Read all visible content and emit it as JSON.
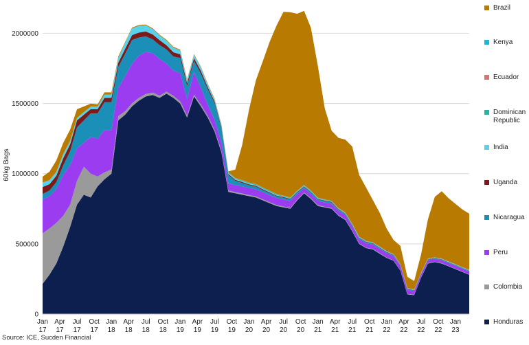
{
  "chart_data": {
    "type": "area",
    "stacked": true,
    "ylabel": "60kg Bags",
    "ylim": [
      0,
      2100000
    ],
    "yticks": [
      0,
      500000,
      1000000,
      1500000,
      2000000
    ],
    "ytick_labels": [
      "0",
      "500000",
      "1000000",
      "1500000",
      "2000000"
    ],
    "grid": "horizontal",
    "legend_position": "right",
    "x": [
      2017.0,
      2017.1,
      2017.2,
      2017.3,
      2017.4,
      2017.5,
      2017.6,
      2017.7,
      2017.8,
      2017.9,
      2018.0,
      2018.1,
      2018.2,
      2018.3,
      2018.4,
      2018.5,
      2018.6,
      2018.7,
      2018.8,
      2018.9,
      2019.0,
      2019.1,
      2019.2,
      2019.3,
      2019.4,
      2019.5,
      2019.6,
      2019.7,
      2019.8,
      2019.9,
      2020.0,
      2020.1,
      2020.2,
      2020.3,
      2020.4,
      2020.5,
      2020.6,
      2020.7,
      2020.8,
      2020.9,
      2021.0,
      2021.1,
      2021.2,
      2021.3,
      2021.4,
      2021.5,
      2021.6,
      2021.7,
      2021.8,
      2021.9,
      2022.0,
      2022.1,
      2022.2,
      2022.3,
      2022.4,
      2022.5,
      2022.6,
      2022.7,
      2022.8,
      2022.9,
      2023.0,
      2023.1,
      2023.2
    ],
    "xticks": [
      2017.0,
      2017.25,
      2017.5,
      2017.75,
      2018.0,
      2018.25,
      2018.5,
      2018.75,
      2019.0,
      2019.25,
      2019.5,
      2019.75,
      2020.0,
      2020.25,
      2020.5,
      2020.75,
      2021.0,
      2021.25,
      2021.5,
      2021.75,
      2022.0,
      2022.25,
      2022.5,
      2022.75,
      2023.0
    ],
    "xtick_labels": [
      [
        "Jan",
        "17"
      ],
      [
        "Apr",
        "17"
      ],
      [
        "Jul",
        "17"
      ],
      [
        "Oct",
        "17"
      ],
      [
        "Jan",
        "18"
      ],
      [
        "Apr",
        "18"
      ],
      [
        "Jul",
        "18"
      ],
      [
        "Oct",
        "18"
      ],
      [
        "Jan",
        "19"
      ],
      [
        "Apr",
        "19"
      ],
      [
        "Jul",
        "19"
      ],
      [
        "Oct",
        "19"
      ],
      [
        "Jan",
        "20"
      ],
      [
        "Apr",
        "20"
      ],
      [
        "Jul",
        "20"
      ],
      [
        "Oct",
        "20"
      ],
      [
        "Jan",
        "21"
      ],
      [
        "Apr",
        "21"
      ],
      [
        "Jul",
        "21"
      ],
      [
        "Oct",
        "21"
      ],
      [
        "Jan",
        "22"
      ],
      [
        "Apr",
        "22"
      ],
      [
        "Jul",
        "22"
      ],
      [
        "Oct",
        "22"
      ],
      [
        "Jan",
        "23"
      ]
    ],
    "series": [
      {
        "name": "Honduras",
        "color": "#0d1f4f",
        "values": [
          215000,
          280000,
          360000,
          480000,
          620000,
          780000,
          850000,
          830000,
          910000,
          960000,
          1000000,
          1380000,
          1420000,
          1480000,
          1520000,
          1550000,
          1560000,
          1540000,
          1570000,
          1540000,
          1500000,
          1400000,
          1550000,
          1480000,
          1400000,
          1300000,
          1150000,
          870000,
          860000,
          850000,
          840000,
          830000,
          810000,
          790000,
          770000,
          760000,
          750000,
          810000,
          860000,
          820000,
          770000,
          760000,
          750000,
          700000,
          670000,
          590000,
          500000,
          470000,
          460000,
          430000,
          400000,
          380000,
          310000,
          140000,
          135000,
          260000,
          360000,
          370000,
          360000,
          340000,
          320000,
          300000,
          280000
        ]
      },
      {
        "name": "Colombia",
        "color": "#9a9a9a",
        "values": [
          360000,
          330000,
          290000,
          220000,
          160000,
          170000,
          200000,
          170000,
          70000,
          50000,
          30000,
          30000,
          25000,
          22000,
          20000,
          18000,
          17000,
          16000,
          15000,
          15000,
          15000,
          14000,
          13000,
          12000,
          12000,
          11000,
          10000,
          10000,
          9000,
          9000,
          8000,
          8000,
          8000,
          7000,
          7000,
          6000,
          6000,
          6000,
          6000,
          6000,
          6000,
          5000,
          5000,
          5000,
          5000,
          5000,
          4000,
          4000,
          4000,
          4000,
          4000,
          3000,
          3000,
          3000,
          3000,
          3000,
          3000,
          3000,
          3000,
          3000,
          3000,
          3000,
          3000
        ]
      },
      {
        "name": "Peru",
        "color": "#9b3cf0",
        "values": [
          240000,
          230000,
          240000,
          290000,
          280000,
          230000,
          170000,
          260000,
          270000,
          300000,
          280000,
          200000,
          250000,
          280000,
          300000,
          300000,
          280000,
          260000,
          200000,
          180000,
          200000,
          120000,
          160000,
          120000,
          80000,
          70000,
          60000,
          50000,
          50000,
          50000,
          50000,
          50000,
          50000,
          50000,
          50000,
          50000,
          50000,
          40000,
          30000,
          30000,
          30000,
          30000,
          30000,
          30000,
          30000,
          30000,
          30000,
          30000,
          30000,
          30000,
          30000,
          30000,
          30000,
          30000,
          25000,
          20000,
          20000,
          20000,
          20000,
          20000,
          20000,
          20000,
          20000
        ]
      },
      {
        "name": "Nicaragua",
        "color": "#1b8fb8",
        "values": [
          40000,
          40000,
          50000,
          70000,
          100000,
          150000,
          160000,
          170000,
          180000,
          200000,
          200000,
          150000,
          160000,
          170000,
          130000,
          110000,
          100000,
          100000,
          100000,
          100000,
          110000,
          90000,
          80000,
          100000,
          110000,
          120000,
          100000,
          60000,
          30000,
          25000,
          20000,
          20000,
          15000,
          15000,
          12000,
          12000,
          10000,
          10000,
          10000,
          10000,
          10000,
          10000,
          10000,
          9000,
          8000,
          8000,
          8000,
          8000,
          7000,
          7000,
          6000,
          6000,
          5000,
          5000,
          5000,
          5000,
          5000,
          5000,
          5000,
          5000,
          5000,
          5000,
          5000
        ]
      },
      {
        "name": "Uganda",
        "color": "#7a1a1a",
        "values": [
          50000,
          45000,
          45000,
          50000,
          50000,
          50000,
          40000,
          30000,
          30000,
          30000,
          30000,
          30000,
          35000,
          35000,
          35000,
          35000,
          35000,
          35000,
          30000,
          30000,
          25000,
          20000,
          20000,
          20000,
          15000,
          12000,
          10000,
          8000,
          7000,
          7000,
          6000,
          6000,
          6000,
          5000,
          5000,
          5000,
          5000,
          4000,
          4000,
          4000,
          4000,
          4000,
          4000,
          4000,
          3000,
          3000,
          3000,
          3000,
          3000,
          3000,
          3000,
          3000,
          3000,
          3000,
          2000,
          2000,
          2000,
          2000,
          2000,
          2000,
          2000,
          2000,
          2000
        ]
      },
      {
        "name": "India",
        "color": "#55d3ee",
        "values": [
          30000,
          25000,
          25000,
          25000,
          20000,
          15000,
          15000,
          15000,
          15000,
          20000,
          20000,
          30000,
          40000,
          45000,
          45000,
          40000,
          35000,
          30000,
          30000,
          30000,
          25000,
          20000,
          20000,
          20000,
          15000,
          12000,
          10000,
          8000,
          7000,
          6000,
          6000,
          5000,
          5000,
          5000,
          5000,
          4000,
          4000,
          4000,
          4000,
          4000,
          4000,
          3000,
          3000,
          3000,
          3000,
          3000,
          3000,
          3000,
          3000,
          3000,
          2000,
          2000,
          2000,
          2000,
          2000,
          2000,
          2000,
          2000,
          2000,
          2000,
          2000,
          2000,
          2000
        ]
      },
      {
        "name": "Dominican Republic",
        "color": "#2ab5a2",
        "values": [
          2000,
          2000,
          2000,
          2000,
          2000,
          2000,
          2000,
          2000,
          2000,
          2000,
          2000,
          2000,
          2000,
          2000,
          2000,
          2000,
          2000,
          2000,
          2000,
          2000,
          2000,
          2000,
          2000,
          2000,
          2000,
          2000,
          2000,
          3000,
          4000,
          5000,
          5000,
          5000,
          5000,
          5000,
          4000,
          4000,
          3000,
          3000,
          3000,
          3000,
          3000,
          2000,
          2000,
          2000,
          2000,
          2000,
          2000,
          2000,
          2000,
          2000,
          2000,
          2000,
          1000,
          1000,
          1000,
          1000,
          1000,
          1000,
          1000,
          1000,
          1000,
          1000,
          1000
        ]
      },
      {
        "name": "Ecuador",
        "color": "#e07070",
        "values": [
          1000,
          1000,
          1000,
          1000,
          1000,
          1000,
          1000,
          1000,
          1000,
          1000,
          1000,
          1000,
          1000,
          1000,
          1000,
          1000,
          1000,
          1000,
          1000,
          1000,
          1000,
          1000,
          1000,
          1000,
          1000,
          1000,
          1000,
          1000,
          1000,
          1000,
          1000,
          1000,
          1000,
          1000,
          1000,
          1000,
          1000,
          1000,
          1000,
          1000,
          1000,
          1000,
          1000,
          1000,
          1000,
          1000,
          1000,
          1000,
          1000,
          1000,
          1000,
          1000,
          1000,
          1000,
          1000,
          1000,
          1000,
          1000,
          1000,
          1000,
          1000,
          1000,
          1000
        ]
      },
      {
        "name": "Kenya",
        "color": "#17b8d8",
        "values": [
          1000,
          1000,
          1000,
          1000,
          1000,
          1000,
          1000,
          1000,
          1000,
          1000,
          1000,
          1000,
          1000,
          1000,
          1000,
          1000,
          1000,
          1000,
          1000,
          1000,
          1000,
          1000,
          1000,
          1000,
          1000,
          1000,
          1000,
          1000,
          1000,
          1000,
          1000,
          1000,
          1000,
          1000,
          1000,
          1000,
          1000,
          1000,
          1000,
          1000,
          1000,
          1000,
          1000,
          1000,
          1000,
          1000,
          1000,
          1000,
          1000,
          1000,
          1000,
          1000,
          1000,
          1000,
          1000,
          1000,
          1000,
          1000,
          1000,
          1000,
          1000,
          1000,
          1000
        ]
      },
      {
        "name": "Brazil",
        "color": "#b87a00",
        "values": [
          40000,
          60000,
          80000,
          80000,
          80000,
          60000,
          40000,
          20000,
          15000,
          15000,
          15000,
          10000,
          5000,
          5000,
          5000,
          5000,
          5000,
          5000,
          5000,
          5000,
          5000,
          5000,
          5000,
          5000,
          5000,
          5000,
          5000,
          5000,
          60000,
          250000,
          520000,
          740000,
          900000,
          1060000,
          1200000,
          1310000,
          1320000,
          1260000,
          1240000,
          1160000,
          940000,
          650000,
          500000,
          500000,
          520000,
          550000,
          440000,
          380000,
          300000,
          240000,
          160000,
          100000,
          130000,
          80000,
          60000,
          130000,
          280000,
          430000,
          480000,
          450000,
          430000,
          410000,
          400000
        ]
      }
    ],
    "source": "Source: ICE, Sucden Financial"
  }
}
